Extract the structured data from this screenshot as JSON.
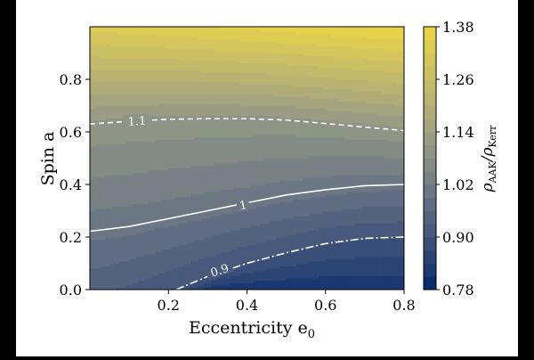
{
  "chart_data": {
    "type": "contourf",
    "xlabel": "Eccentricity e",
    "xlabel_sub": "0",
    "ylabel": "Spin a",
    "xlim": [
      0.0,
      0.8
    ],
    "ylim": [
      0.0,
      1.0
    ],
    "xticks": [
      0.2,
      0.4,
      0.6,
      0.8
    ],
    "xtick_labels": [
      "0.2",
      "0.4",
      "0.6",
      "0.8"
    ],
    "yticks": [
      0.0,
      0.2,
      0.4,
      0.6,
      0.8
    ],
    "ytick_labels": [
      "0.0",
      "0.2",
      "0.4",
      "0.6",
      "0.8"
    ],
    "colorbar": {
      "label_main": "ρ",
      "label_num_sub": "AAK",
      "label_sep": "/ρ",
      "label_den_sub": "Kerr",
      "range": [
        0.78,
        1.38
      ],
      "ticks": [
        0.78,
        0.9,
        1.02,
        1.14,
        1.26,
        1.38
      ],
      "tick_labels": [
        "0.78",
        "0.90",
        "1.02",
        "1.14",
        "1.26",
        "1.38"
      ],
      "levels": [
        0.78,
        0.81,
        0.84,
        0.87,
        0.9,
        0.93,
        0.96,
        0.99,
        1.02,
        1.05,
        1.08,
        1.11,
        1.14,
        1.17,
        1.2,
        1.23,
        1.26,
        1.29,
        1.32,
        1.35,
        1.38
      ],
      "colors": [
        "#0a2c6a",
        "#1b3870",
        "#2c4474",
        "#3a4f78",
        "#48597c",
        "#55637f",
        "#616d82",
        "#6d7784",
        "#798185",
        "#848b86",
        "#8f9586",
        "#9a9d83",
        "#a4a57f",
        "#afac79",
        "#b9b372",
        "#c2ba6b",
        "#cbc064",
        "#d4c65c",
        "#dccc53",
        "#e6d34a"
      ]
    },
    "contour_lines": [
      {
        "level": 0.9,
        "label": "0.9",
        "style": "dashdot",
        "points": [
          [
            0.22,
            0.0
          ],
          [
            0.3,
            0.05
          ],
          [
            0.4,
            0.1
          ],
          [
            0.5,
            0.14
          ],
          [
            0.6,
            0.175
          ],
          [
            0.7,
            0.195
          ],
          [
            0.8,
            0.2
          ]
        ],
        "label_at": [
          0.33,
          0.075
        ]
      },
      {
        "level": 1.0,
        "label": "1",
        "style": "solid",
        "points": [
          [
            0.0,
            0.222
          ],
          [
            0.1,
            0.24
          ],
          [
            0.2,
            0.27
          ],
          [
            0.3,
            0.3
          ],
          [
            0.4,
            0.33
          ],
          [
            0.5,
            0.36
          ],
          [
            0.6,
            0.38
          ],
          [
            0.7,
            0.395
          ],
          [
            0.8,
            0.4
          ]
        ],
        "label_at": [
          0.39,
          0.323
        ]
      },
      {
        "level": 1.1,
        "label": "1.1",
        "style": "dashed",
        "points": [
          [
            0.0,
            0.63
          ],
          [
            0.1,
            0.64
          ],
          [
            0.2,
            0.648
          ],
          [
            0.3,
            0.65
          ],
          [
            0.4,
            0.65
          ],
          [
            0.5,
            0.645
          ],
          [
            0.6,
            0.632
          ],
          [
            0.7,
            0.618
          ],
          [
            0.8,
            0.605
          ]
        ],
        "label_at": [
          0.12,
          0.643
        ]
      }
    ],
    "field_model": "spin-and-eccentricity dependent SNR ratio rho_AAK/rho_Kerr; ~1.00 along the solid curve, rising with spin a"
  }
}
